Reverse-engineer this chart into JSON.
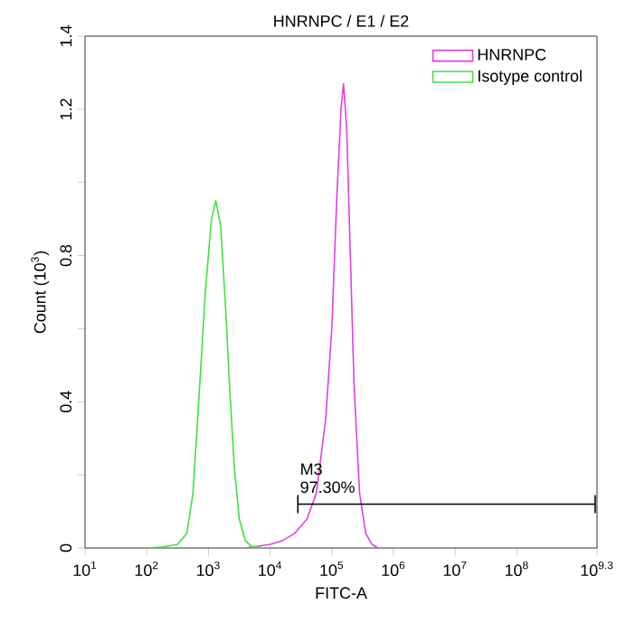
{
  "chart_data": {
    "type": "line",
    "title": "HNRNPC / E1 / E2",
    "xlabel": "FITC-A",
    "ylabel": "Count (10$^{3}$)",
    "log": "x",
    "xlim": [
      10,
      1995262315
    ],
    "ylim": [
      0,
      1.4
    ],
    "xticks": [
      {
        "value": 10,
        "label": "10$^{1}$"
      },
      {
        "value": 100,
        "label": "10$^{2}$"
      },
      {
        "value": 1000,
        "label": "10$^{3}$"
      },
      {
        "value": 10000,
        "label": "10$^{4}$"
      },
      {
        "value": 100000,
        "label": "10$^{5}$"
      },
      {
        "value": 1000000,
        "label": "10$^{6}$"
      },
      {
        "value": 10000000,
        "label": "10$^{7}$"
      },
      {
        "value": 100000000,
        "label": "10$^{8}$"
      },
      {
        "value": 1995262315,
        "label": "10$^{9.3}$"
      }
    ],
    "yticks": [
      0,
      {
        "value": 0.2,
        "label": null
      },
      0.4,
      {
        "value": 0.6,
        "label": null
      },
      0.8,
      {
        "value": 1.0,
        "label": null
      },
      1.2,
      1.4
    ],
    "legend": "top right",
    "grid": false,
    "series": [
      {
        "name": "HNRNPC",
        "color": "#e040e0",
        "x": [
          3980,
          6310,
          10000,
          15800,
          25100,
          39800,
          56200,
          79400,
          100000,
          120000,
          141000,
          155000,
          174000,
          200000,
          229000,
          282000,
          355000,
          447000,
          562000
        ],
        "values": [
          0,
          0.005,
          0.01,
          0.02,
          0.04,
          0.08,
          0.15,
          0.35,
          0.6,
          0.95,
          1.2,
          1.27,
          1.15,
          0.8,
          0.45,
          0.15,
          0.04,
          0.01,
          0
        ]
      },
      {
        "name": "Isotype control",
        "color": "#40e040",
        "x": [
          100,
          182,
          316,
          447,
          562,
          708,
          891,
          1120,
          1320,
          1580,
          1910,
          2190,
          2630,
          3160,
          3980,
          5010,
          7940
        ],
        "values": [
          0,
          0.003,
          0.01,
          0.04,
          0.15,
          0.42,
          0.7,
          0.9,
          0.95,
          0.88,
          0.65,
          0.45,
          0.22,
          0.08,
          0.02,
          0.004,
          0
        ]
      },
      {
        "type": "line",
        "color": "#000000",
        "x": [
          28200,
          1860000000
        ],
        "values": [
          0.12,
          0.12
        ]
      }
    ],
    "annotations": [
      "M3",
      "97.30%"
    ]
  }
}
